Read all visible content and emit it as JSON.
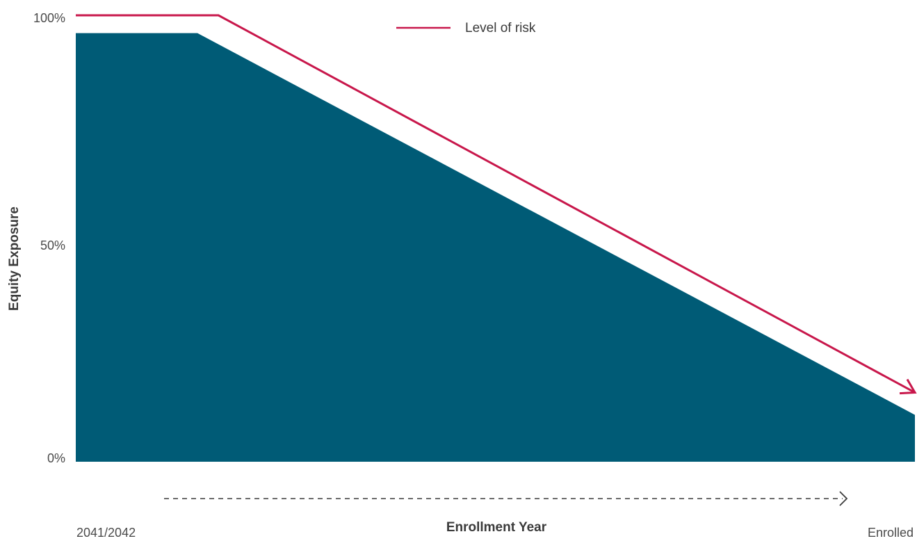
{
  "chart_data": {
    "type": "area",
    "xlabel": "Enrollment Year",
    "ylabel": "Equity Exposure",
    "x_tick_labels": {
      "start": "2041/2042",
      "end": "Enrolled"
    },
    "y_ticks": [
      {
        "value": 100,
        "label": "100%"
      },
      {
        "value": 50,
        "label": "50%"
      },
      {
        "value": 0,
        "label": "0%"
      }
    ],
    "ylim": [
      0,
      100
    ],
    "xlim": [
      0,
      100
    ],
    "series": [
      {
        "name": "",
        "kind": "area",
        "color": "#005b76",
        "points": [
          {
            "x": 0,
            "y": 96
          },
          {
            "x": 14.5,
            "y": 96
          },
          {
            "x": 100,
            "y": 10.5
          }
        ]
      },
      {
        "name": "Level of risk",
        "kind": "line-arrow",
        "color": "#c8174b",
        "points": [
          {
            "x": 0,
            "y": 100
          },
          {
            "x": 17,
            "y": 100
          },
          {
            "x": 100,
            "y": 15.5
          }
        ]
      }
    ],
    "legend": {
      "position": "top-center",
      "entries": [
        "Level of risk"
      ]
    },
    "timeline_arrow": {
      "style": "dashed",
      "color": "#3a3a3a"
    },
    "grid": false
  }
}
